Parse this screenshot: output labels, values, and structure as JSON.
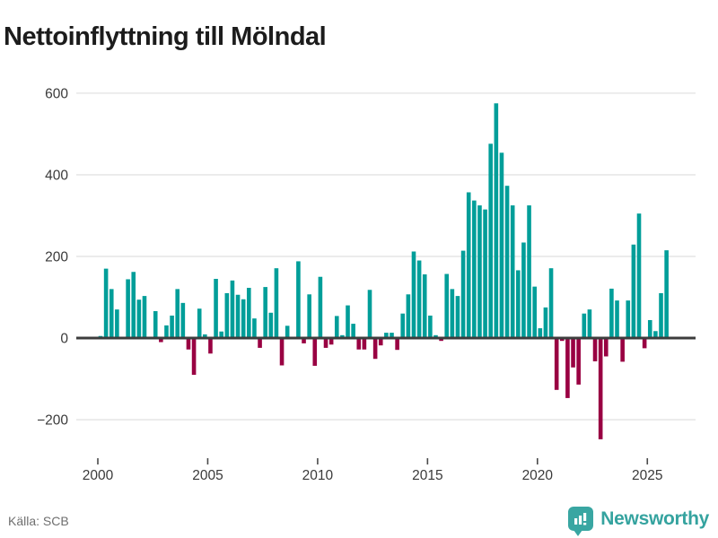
{
  "header": {
    "title": "Nettoinflyttning till Mölndal"
  },
  "footer": {
    "source": "Källa: SCB",
    "brand": "Newsworthy"
  },
  "colors": {
    "positive_bar": "#009E99",
    "negative_bar": "#990042",
    "grid_line": "#e7e7e7",
    "zero_line": "#3d3d3d",
    "axis_text": "#3a3a3a",
    "title_text": "#1c1c1c",
    "source_text": "#6f6f6f",
    "brand_teal": "#39a6a2"
  },
  "icons": {
    "brand_badge": "bar-chart-speech-bubble-icon"
  },
  "chart_data": {
    "type": "bar",
    "title": "Nettoinflyttning till Mölndal",
    "x_unit": "quarter",
    "start_year": 2000,
    "start_quarter": "2000Q1",
    "end_quarter": "2025Q4",
    "values": [
      5,
      170,
      120,
      70,
      0,
      144,
      162,
      94,
      103,
      0,
      66,
      -10,
      31,
      55,
      120,
      86,
      -28,
      -90,
      72,
      9,
      -38,
      145,
      16,
      110,
      141,
      106,
      95,
      123,
      48,
      -24,
      125,
      62,
      171,
      -67,
      30,
      0,
      188,
      -13,
      107,
      -68,
      150,
      -24,
      -16,
      54,
      7,
      80,
      35,
      -28,
      -28,
      118,
      -51,
      -18,
      13,
      13,
      -29,
      60,
      107,
      212,
      190,
      156,
      55,
      7,
      -7,
      157,
      120,
      103,
      214,
      357,
      337,
      325,
      315,
      476,
      575,
      454,
      373,
      325,
      166,
      234,
      325,
      126,
      24,
      75,
      171,
      -127,
      -7,
      -147,
      -72,
      -114,
      60,
      70,
      -57,
      -248,
      -45,
      121,
      92,
      -58,
      92,
      229,
      305,
      -25,
      44,
      17,
      110,
      215
    ],
    "y_ticks": [
      600,
      400,
      200,
      0,
      -200
    ],
    "y_tick_labels": [
      "600",
      "400",
      "200",
      "0",
      "−200"
    ],
    "x_tick_years": [
      2000,
      2005,
      2010,
      2015,
      2020,
      2025
    ],
    "x_tick_labels": [
      "2000",
      "2005",
      "2010",
      "2015",
      "2020",
      "2025"
    ],
    "ylim": [
      -260,
      620
    ],
    "grid": true,
    "legend": false,
    "source_label": "Källa: SCB"
  }
}
